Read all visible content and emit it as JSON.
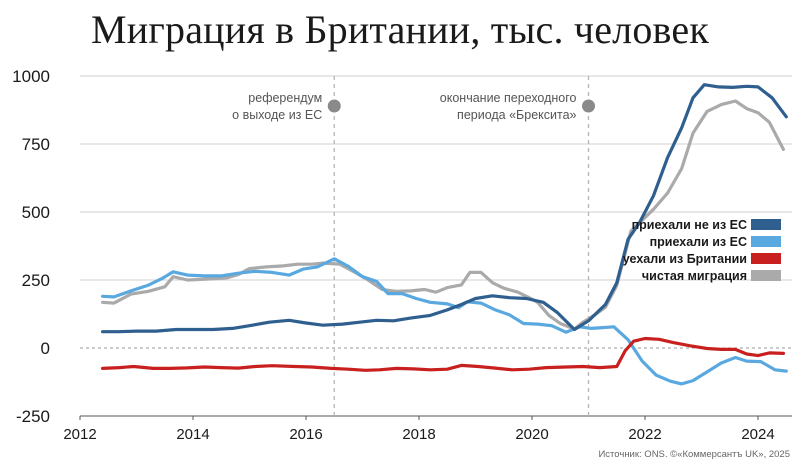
{
  "chart_data": {
    "type": "line",
    "title": "Миграция в Британии, тыс. человек",
    "ylim": [
      -250,
      1000
    ],
    "xlim": [
      2012,
      2024.6
    ],
    "y_ticks": [
      {
        "value": 1000,
        "label": "1000"
      },
      {
        "value": 750,
        "label": "750"
      },
      {
        "value": 500,
        "label": "500"
      },
      {
        "value": 250,
        "label": "250"
      },
      {
        "value": 0,
        "label": "0"
      },
      {
        "value": -250,
        "label": "-250"
      }
    ],
    "x_ticks": [
      {
        "value": 2012,
        "label": "2012"
      },
      {
        "value": 2014,
        "label": "2014"
      },
      {
        "value": 2016,
        "label": "2016"
      },
      {
        "value": 2018,
        "label": "2018"
      },
      {
        "value": 2020,
        "label": "2020"
      },
      {
        "value": 2022,
        "label": "2022"
      },
      {
        "value": 2024,
        "label": "2024"
      }
    ],
    "grid": "horizontal",
    "legend_position": "right",
    "annotations": [
      {
        "x": 2016.5,
        "lines": [
          "референдум",
          "о выходе из ЕС"
        ]
      },
      {
        "x": 2021.0,
        "lines": [
          "окончание переходного",
          "периода «Брексита»"
        ]
      }
    ],
    "series": [
      {
        "name": "чистая миграция",
        "color": "#aaaaaa",
        "points": [
          [
            2012.4,
            168
          ],
          [
            2012.6,
            165
          ],
          [
            2012.9,
            198
          ],
          [
            2013.2,
            208
          ],
          [
            2013.5,
            225
          ],
          [
            2013.65,
            262
          ],
          [
            2013.9,
            250
          ],
          [
            2014.1,
            252
          ],
          [
            2014.4,
            255
          ],
          [
            2014.6,
            258
          ],
          [
            2014.8,
            270
          ],
          [
            2015.0,
            292
          ],
          [
            2015.3,
            298
          ],
          [
            2015.6,
            302
          ],
          [
            2015.85,
            308
          ],
          [
            2016.1,
            308
          ],
          [
            2016.3,
            312
          ],
          [
            2016.6,
            308
          ],
          [
            2016.85,
            280
          ],
          [
            2017.1,
            250
          ],
          [
            2017.35,
            215
          ],
          [
            2017.6,
            208
          ],
          [
            2017.85,
            210
          ],
          [
            2018.1,
            215
          ],
          [
            2018.3,
            205
          ],
          [
            2018.5,
            222
          ],
          [
            2018.75,
            232
          ],
          [
            2018.9,
            278
          ],
          [
            2019.1,
            278
          ],
          [
            2019.3,
            240
          ],
          [
            2019.5,
            220
          ],
          [
            2019.75,
            205
          ],
          [
            2019.95,
            185
          ],
          [
            2020.1,
            168
          ],
          [
            2020.3,
            120
          ],
          [
            2020.5,
            90
          ],
          [
            2020.75,
            70
          ],
          [
            2020.9,
            95
          ],
          [
            2021.1,
            120
          ],
          [
            2021.3,
            150
          ],
          [
            2021.5,
            230
          ],
          [
            2021.75,
            430
          ],
          [
            2021.95,
            470
          ],
          [
            2022.15,
            510
          ],
          [
            2022.4,
            570
          ],
          [
            2022.65,
            660
          ],
          [
            2022.85,
            790
          ],
          [
            2023.1,
            870
          ],
          [
            2023.35,
            895
          ],
          [
            2023.6,
            908
          ],
          [
            2023.8,
            880
          ],
          [
            2024.0,
            865
          ],
          [
            2024.2,
            830
          ],
          [
            2024.45,
            730
          ]
        ]
      },
      {
        "name": "приехали из ЕС",
        "color": "#5aa8e0",
        "points": [
          [
            2012.4,
            190
          ],
          [
            2012.6,
            188
          ],
          [
            2012.9,
            210
          ],
          [
            2013.2,
            230
          ],
          [
            2013.45,
            255
          ],
          [
            2013.65,
            280
          ],
          [
            2013.9,
            268
          ],
          [
            2014.2,
            265
          ],
          [
            2014.5,
            265
          ],
          [
            2014.8,
            275
          ],
          [
            2015.1,
            282
          ],
          [
            2015.4,
            278
          ],
          [
            2015.7,
            268
          ],
          [
            2015.95,
            290
          ],
          [
            2016.2,
            298
          ],
          [
            2016.5,
            328
          ],
          [
            2016.75,
            300
          ],
          [
            2017.0,
            262
          ],
          [
            2017.25,
            245
          ],
          [
            2017.45,
            200
          ],
          [
            2017.7,
            200
          ],
          [
            2017.95,
            182
          ],
          [
            2018.2,
            168
          ],
          [
            2018.5,
            162
          ],
          [
            2018.7,
            148
          ],
          [
            2018.85,
            170
          ],
          [
            2019.1,
            165
          ],
          [
            2019.35,
            140
          ],
          [
            2019.6,
            122
          ],
          [
            2019.85,
            90
          ],
          [
            2020.1,
            88
          ],
          [
            2020.35,
            82
          ],
          [
            2020.6,
            58
          ],
          [
            2020.85,
            78
          ],
          [
            2021.05,
            72
          ],
          [
            2021.25,
            75
          ],
          [
            2021.45,
            78
          ],
          [
            2021.7,
            30
          ],
          [
            2021.95,
            -48
          ],
          [
            2022.2,
            -100
          ],
          [
            2022.45,
            -122
          ],
          [
            2022.65,
            -132
          ],
          [
            2022.85,
            -120
          ],
          [
            2023.1,
            -88
          ],
          [
            2023.35,
            -55
          ],
          [
            2023.6,
            -35
          ],
          [
            2023.8,
            -48
          ],
          [
            2024.05,
            -50
          ],
          [
            2024.3,
            -80
          ],
          [
            2024.5,
            -85
          ]
        ]
      },
      {
        "name": "уехали из Британии",
        "color": "#c8201f",
        "points": [
          [
            2012.4,
            -75
          ],
          [
            2012.7,
            -72
          ],
          [
            2012.95,
            -68
          ],
          [
            2013.3,
            -75
          ],
          [
            2013.6,
            -75
          ],
          [
            2013.9,
            -73
          ],
          [
            2014.2,
            -70
          ],
          [
            2014.5,
            -72
          ],
          [
            2014.8,
            -74
          ],
          [
            2015.1,
            -68
          ],
          [
            2015.4,
            -65
          ],
          [
            2015.8,
            -68
          ],
          [
            2016.1,
            -70
          ],
          [
            2016.45,
            -75
          ],
          [
            2016.75,
            -78
          ],
          [
            2017.05,
            -82
          ],
          [
            2017.3,
            -80
          ],
          [
            2017.6,
            -75
          ],
          [
            2017.9,
            -77
          ],
          [
            2018.2,
            -80
          ],
          [
            2018.5,
            -78
          ],
          [
            2018.75,
            -64
          ],
          [
            2019.05,
            -68
          ],
          [
            2019.35,
            -74
          ],
          [
            2019.65,
            -80
          ],
          [
            2019.95,
            -78
          ],
          [
            2020.25,
            -72
          ],
          [
            2020.6,
            -70
          ],
          [
            2020.9,
            -68
          ],
          [
            2021.2,
            -72
          ],
          [
            2021.5,
            -68
          ],
          [
            2021.65,
            -10
          ],
          [
            2021.8,
            25
          ],
          [
            2022.0,
            35
          ],
          [
            2022.25,
            32
          ],
          [
            2022.5,
            20
          ],
          [
            2022.8,
            8
          ],
          [
            2023.1,
            -2
          ],
          [
            2023.35,
            -5
          ],
          [
            2023.6,
            -5
          ],
          [
            2023.8,
            -22
          ],
          [
            2024.0,
            -28
          ],
          [
            2024.2,
            -18
          ],
          [
            2024.45,
            -20
          ]
        ]
      },
      {
        "name": "приехали не из ЕС",
        "color": "#2e5f8f",
        "points": [
          [
            2012.4,
            60
          ],
          [
            2012.7,
            60
          ],
          [
            2013.0,
            62
          ],
          [
            2013.35,
            62
          ],
          [
            2013.7,
            68
          ],
          [
            2014.0,
            68
          ],
          [
            2014.35,
            68
          ],
          [
            2014.7,
            72
          ],
          [
            2015.0,
            82
          ],
          [
            2015.35,
            95
          ],
          [
            2015.7,
            102
          ],
          [
            2016.0,
            92
          ],
          [
            2016.3,
            84
          ],
          [
            2016.65,
            88
          ],
          [
            2016.95,
            95
          ],
          [
            2017.25,
            102
          ],
          [
            2017.55,
            100
          ],
          [
            2017.85,
            110
          ],
          [
            2018.2,
            120
          ],
          [
            2018.5,
            140
          ],
          [
            2018.75,
            160
          ],
          [
            2019.0,
            182
          ],
          [
            2019.3,
            192
          ],
          [
            2019.6,
            185
          ],
          [
            2019.9,
            182
          ],
          [
            2020.2,
            168
          ],
          [
            2020.45,
            130
          ],
          [
            2020.75,
            68
          ],
          [
            2021.0,
            100
          ],
          [
            2021.3,
            160
          ],
          [
            2021.5,
            240
          ],
          [
            2021.7,
            400
          ],
          [
            2021.9,
            460
          ],
          [
            2022.15,
            560
          ],
          [
            2022.4,
            700
          ],
          [
            2022.65,
            810
          ],
          [
            2022.85,
            920
          ],
          [
            2023.05,
            968
          ],
          [
            2023.3,
            960
          ],
          [
            2023.55,
            958
          ],
          [
            2023.8,
            962
          ],
          [
            2024.0,
            960
          ],
          [
            2024.25,
            920
          ],
          [
            2024.5,
            850
          ]
        ]
      }
    ],
    "legend": [
      {
        "label": "приехали не из ЕС",
        "color": "#2e5f8f"
      },
      {
        "label": "приехали из ЕС",
        "color": "#5aa8e0"
      },
      {
        "label": "уехали из Британии",
        "color": "#c8201f"
      },
      {
        "label": "чистая миграция",
        "color": "#aaaaaa"
      }
    ],
    "source": "Источник: ONS. ©«Коммерсантъ UK», 2025"
  }
}
